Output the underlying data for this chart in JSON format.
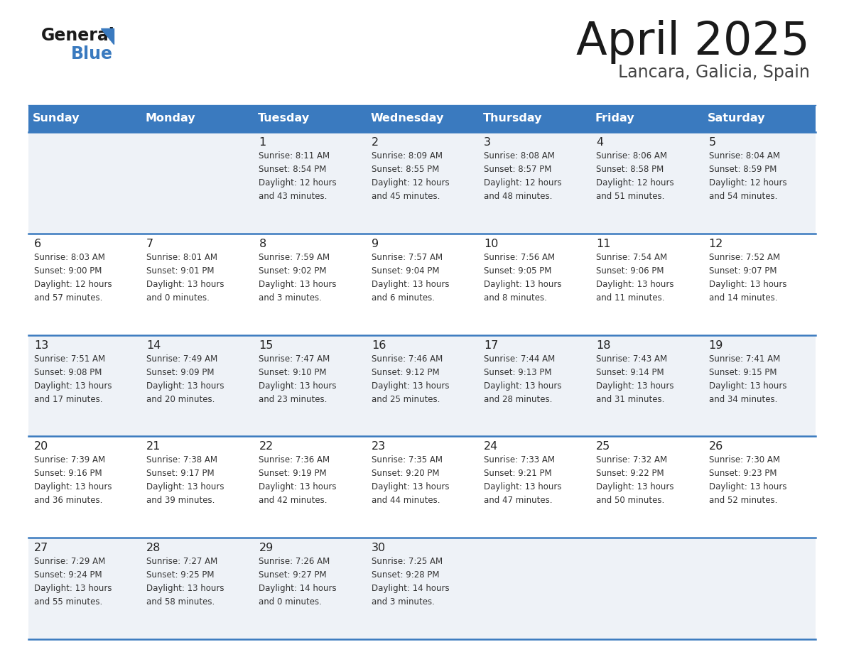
{
  "title": "April 2025",
  "subtitle": "Lancara, Galicia, Spain",
  "header_bg": "#3a7abf",
  "header_text": "#ffffff",
  "row_bg_odd": "#eef2f7",
  "row_bg_even": "#ffffff",
  "day_text_color": "#222222",
  "info_text_color": "#333333",
  "border_color": "#3a7abf",
  "days_of_week": [
    "Sunday",
    "Monday",
    "Tuesday",
    "Wednesday",
    "Thursday",
    "Friday",
    "Saturday"
  ],
  "weeks": [
    [
      {
        "day": "",
        "info": ""
      },
      {
        "day": "",
        "info": ""
      },
      {
        "day": "1",
        "info": "Sunrise: 8:11 AM\nSunset: 8:54 PM\nDaylight: 12 hours\nand 43 minutes."
      },
      {
        "day": "2",
        "info": "Sunrise: 8:09 AM\nSunset: 8:55 PM\nDaylight: 12 hours\nand 45 minutes."
      },
      {
        "day": "3",
        "info": "Sunrise: 8:08 AM\nSunset: 8:57 PM\nDaylight: 12 hours\nand 48 minutes."
      },
      {
        "day": "4",
        "info": "Sunrise: 8:06 AM\nSunset: 8:58 PM\nDaylight: 12 hours\nand 51 minutes."
      },
      {
        "day": "5",
        "info": "Sunrise: 8:04 AM\nSunset: 8:59 PM\nDaylight: 12 hours\nand 54 minutes."
      }
    ],
    [
      {
        "day": "6",
        "info": "Sunrise: 8:03 AM\nSunset: 9:00 PM\nDaylight: 12 hours\nand 57 minutes."
      },
      {
        "day": "7",
        "info": "Sunrise: 8:01 AM\nSunset: 9:01 PM\nDaylight: 13 hours\nand 0 minutes."
      },
      {
        "day": "8",
        "info": "Sunrise: 7:59 AM\nSunset: 9:02 PM\nDaylight: 13 hours\nand 3 minutes."
      },
      {
        "day": "9",
        "info": "Sunrise: 7:57 AM\nSunset: 9:04 PM\nDaylight: 13 hours\nand 6 minutes."
      },
      {
        "day": "10",
        "info": "Sunrise: 7:56 AM\nSunset: 9:05 PM\nDaylight: 13 hours\nand 8 minutes."
      },
      {
        "day": "11",
        "info": "Sunrise: 7:54 AM\nSunset: 9:06 PM\nDaylight: 13 hours\nand 11 minutes."
      },
      {
        "day": "12",
        "info": "Sunrise: 7:52 AM\nSunset: 9:07 PM\nDaylight: 13 hours\nand 14 minutes."
      }
    ],
    [
      {
        "day": "13",
        "info": "Sunrise: 7:51 AM\nSunset: 9:08 PM\nDaylight: 13 hours\nand 17 minutes."
      },
      {
        "day": "14",
        "info": "Sunrise: 7:49 AM\nSunset: 9:09 PM\nDaylight: 13 hours\nand 20 minutes."
      },
      {
        "day": "15",
        "info": "Sunrise: 7:47 AM\nSunset: 9:10 PM\nDaylight: 13 hours\nand 23 minutes."
      },
      {
        "day": "16",
        "info": "Sunrise: 7:46 AM\nSunset: 9:12 PM\nDaylight: 13 hours\nand 25 minutes."
      },
      {
        "day": "17",
        "info": "Sunrise: 7:44 AM\nSunset: 9:13 PM\nDaylight: 13 hours\nand 28 minutes."
      },
      {
        "day": "18",
        "info": "Sunrise: 7:43 AM\nSunset: 9:14 PM\nDaylight: 13 hours\nand 31 minutes."
      },
      {
        "day": "19",
        "info": "Sunrise: 7:41 AM\nSunset: 9:15 PM\nDaylight: 13 hours\nand 34 minutes."
      }
    ],
    [
      {
        "day": "20",
        "info": "Sunrise: 7:39 AM\nSunset: 9:16 PM\nDaylight: 13 hours\nand 36 minutes."
      },
      {
        "day": "21",
        "info": "Sunrise: 7:38 AM\nSunset: 9:17 PM\nDaylight: 13 hours\nand 39 minutes."
      },
      {
        "day": "22",
        "info": "Sunrise: 7:36 AM\nSunset: 9:19 PM\nDaylight: 13 hours\nand 42 minutes."
      },
      {
        "day": "23",
        "info": "Sunrise: 7:35 AM\nSunset: 9:20 PM\nDaylight: 13 hours\nand 44 minutes."
      },
      {
        "day": "24",
        "info": "Sunrise: 7:33 AM\nSunset: 9:21 PM\nDaylight: 13 hours\nand 47 minutes."
      },
      {
        "day": "25",
        "info": "Sunrise: 7:32 AM\nSunset: 9:22 PM\nDaylight: 13 hours\nand 50 minutes."
      },
      {
        "day": "26",
        "info": "Sunrise: 7:30 AM\nSunset: 9:23 PM\nDaylight: 13 hours\nand 52 minutes."
      }
    ],
    [
      {
        "day": "27",
        "info": "Sunrise: 7:29 AM\nSunset: 9:24 PM\nDaylight: 13 hours\nand 55 minutes."
      },
      {
        "day": "28",
        "info": "Sunrise: 7:27 AM\nSunset: 9:25 PM\nDaylight: 13 hours\nand 58 minutes."
      },
      {
        "day": "29",
        "info": "Sunrise: 7:26 AM\nSunset: 9:27 PM\nDaylight: 14 hours\nand 0 minutes."
      },
      {
        "day": "30",
        "info": "Sunrise: 7:25 AM\nSunset: 9:28 PM\nDaylight: 14 hours\nand 3 minutes."
      },
      {
        "day": "",
        "info": ""
      },
      {
        "day": "",
        "info": ""
      },
      {
        "day": "",
        "info": ""
      }
    ]
  ]
}
